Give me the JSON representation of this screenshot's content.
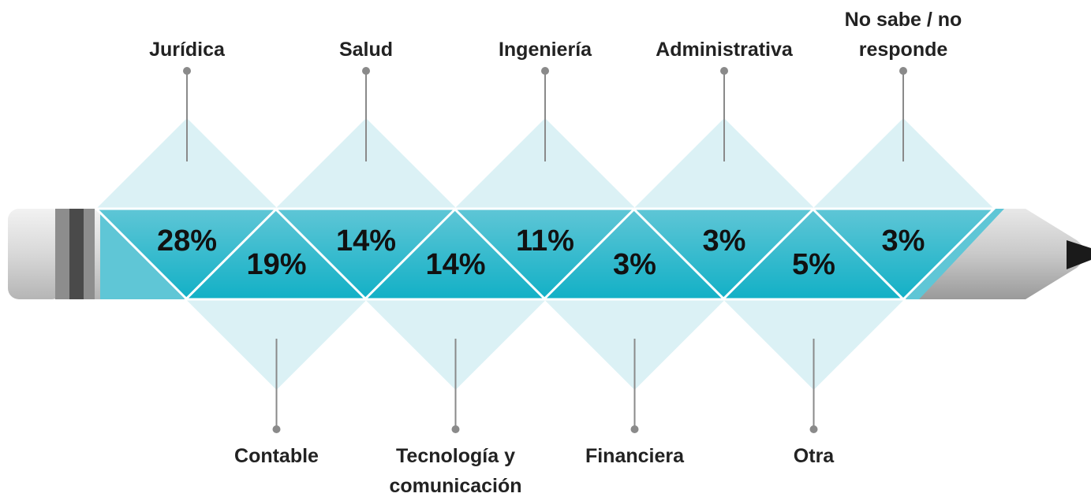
{
  "chart_data": {
    "type": "pencil",
    "categories": [
      "Jurídica",
      "Contable",
      "Salud",
      "Tecnología y comunicación",
      "Ingeniería",
      "Financiera",
      "Administrativa",
      "Otra",
      "No sabe / no responde"
    ],
    "values": [
      28,
      19,
      14,
      14,
      11,
      3,
      3,
      5,
      3
    ],
    "value_labels": [
      "28%",
      "19%",
      "14%",
      "14%",
      "11%",
      "3%",
      "3%",
      "5%",
      "3%"
    ],
    "color": "#1eb4c8"
  }
}
